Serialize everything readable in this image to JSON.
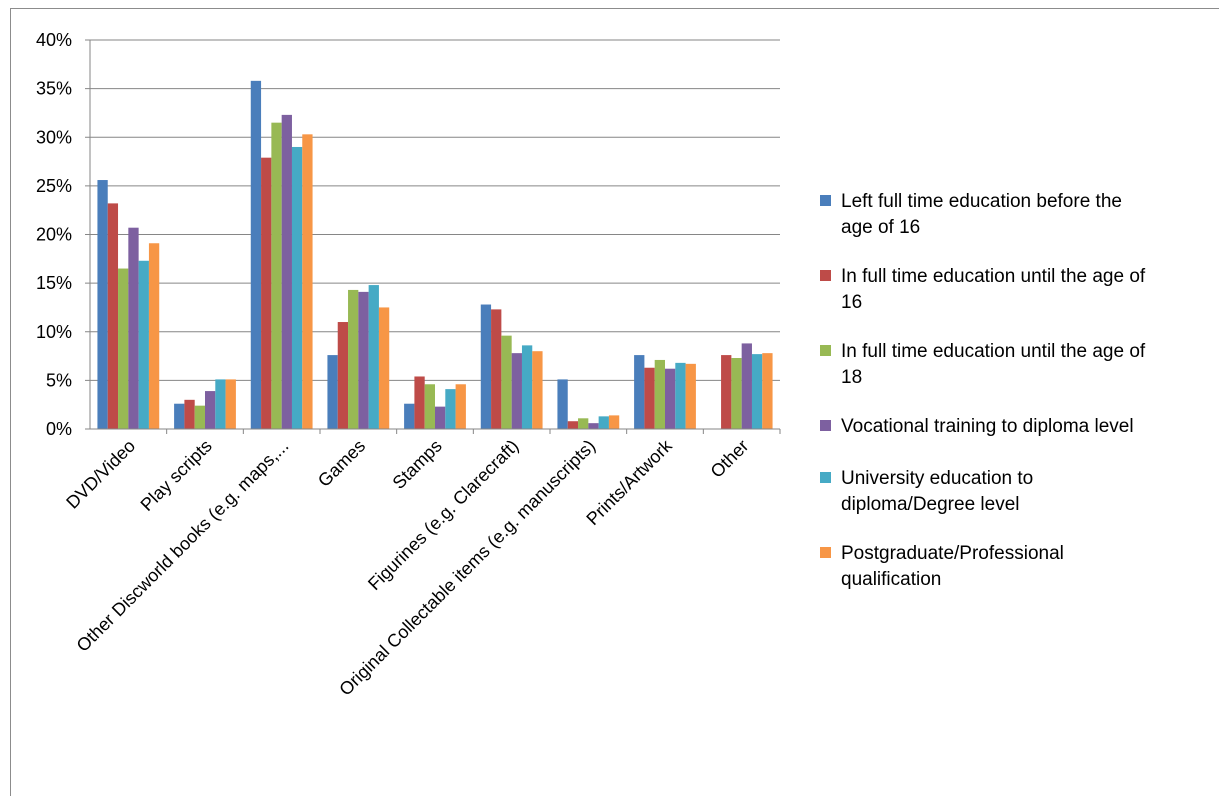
{
  "chart_data": {
    "type": "bar",
    "categories": [
      "DVD/Video",
      "Play scripts",
      "Other Discworld books (e.g. maps,...",
      "Games",
      "Stamps",
      "Figurines (e.g. Clarecraft)",
      "Original Collectable items (e.g. manuscripts)",
      "Prints/Artwork",
      "Other"
    ],
    "y_ticks": [
      "0%",
      "5%",
      "10%",
      "15%",
      "20%",
      "25%",
      "30%",
      "35%",
      "40%"
    ],
    "ylim": [
      0,
      40
    ],
    "grid": true,
    "legend_position": "right",
    "series": [
      {
        "name": "Left full time education before the age of 16",
        "legend_lines": [
          "Left full time education before the",
          "age of 16"
        ],
        "color": "#4a7ebb",
        "values": [
          25.6,
          2.6,
          35.8,
          7.6,
          2.6,
          12.8,
          5.1,
          7.6,
          0
        ]
      },
      {
        "name": "In full time education until the age of 16",
        "legend_lines": [
          "In full time education until the age of",
          "16"
        ],
        "color": "#be4b48",
        "values": [
          23.2,
          3.0,
          27.9,
          11.0,
          5.4,
          12.3,
          0.8,
          6.3,
          7.6
        ]
      },
      {
        "name": "In full time education until the age of 18",
        "legend_lines": [
          "In full time education until the age of",
          "18"
        ],
        "color": "#98b954",
        "values": [
          16.5,
          2.4,
          31.5,
          14.3,
          4.6,
          9.6,
          1.1,
          7.1,
          7.3
        ]
      },
      {
        "name": "Vocational training to diploma level",
        "legend_lines": [
          "Vocational training to diploma level"
        ],
        "color": "#7d60a0",
        "values": [
          20.7,
          3.9,
          32.3,
          14.1,
          2.3,
          7.8,
          0.6,
          6.2,
          8.8
        ]
      },
      {
        "name": "University education to diploma/Degree level",
        "legend_lines": [
          "University education to",
          "diploma/Degree level"
        ],
        "color": "#46aac5",
        "values": [
          17.3,
          5.1,
          29.0,
          14.8,
          4.1,
          8.6,
          1.3,
          6.8,
          7.7
        ]
      },
      {
        "name": "Postgraduate/Professional qualification",
        "legend_lines": [
          "Postgraduate/Professional",
          "qualification"
        ],
        "color": "#f79646",
        "values": [
          19.1,
          5.1,
          30.3,
          12.5,
          4.6,
          8.0,
          1.4,
          6.7,
          7.8
        ]
      }
    ]
  }
}
